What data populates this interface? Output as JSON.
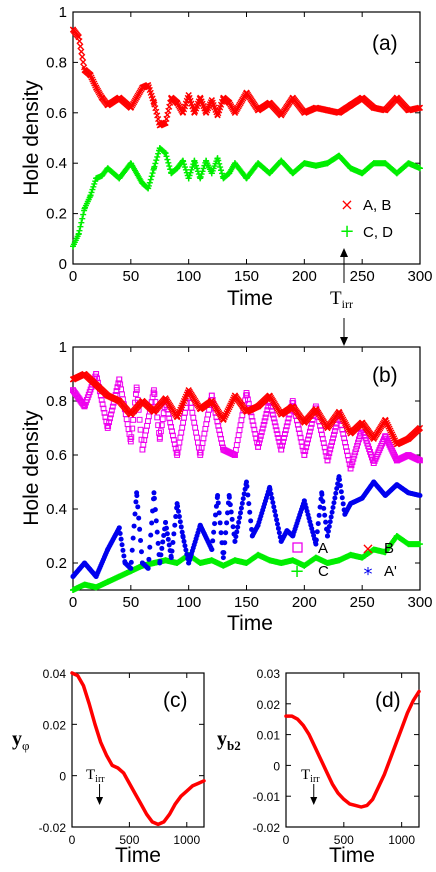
{
  "annotation": {
    "label": "T",
    "sub": "irr"
  },
  "chart_data": [
    {
      "type": "scatter",
      "panel_label": "(a)",
      "xlabel": "Time",
      "ylabel": "Hole density",
      "xlim": [
        0,
        300
      ],
      "ylim": [
        0,
        1
      ],
      "xticks": [
        "0",
        "50",
        "100",
        "150",
        "200",
        "250",
        "300"
      ],
      "yticks": [
        "0",
        "0.2",
        "0.4",
        "0.6",
        "0.8",
        "1"
      ],
      "xtick_values": [
        0,
        50,
        100,
        150,
        200,
        250,
        300
      ],
      "ytick_values": [
        0,
        0.2,
        0.4,
        0.6,
        0.8,
        1
      ],
      "legend_position": "bottom-right",
      "series": [
        {
          "name": "A, B",
          "color": "#ff0000",
          "marker": "x",
          "x": [
            0,
            5,
            10,
            15,
            20,
            25,
            30,
            40,
            50,
            60,
            65,
            70,
            75,
            80,
            85,
            90,
            95,
            100,
            105,
            110,
            115,
            120,
            125,
            130,
            135,
            140,
            150,
            160,
            170,
            180,
            190,
            200,
            210,
            220,
            230,
            240,
            250,
            260,
            270,
            280,
            290,
            300
          ],
          "y": [
            0.93,
            0.9,
            0.77,
            0.75,
            0.7,
            0.66,
            0.63,
            0.66,
            0.62,
            0.7,
            0.71,
            0.64,
            0.55,
            0.56,
            0.66,
            0.64,
            0.6,
            0.67,
            0.6,
            0.66,
            0.6,
            0.65,
            0.59,
            0.66,
            0.64,
            0.6,
            0.68,
            0.61,
            0.64,
            0.59,
            0.66,
            0.6,
            0.62,
            0.61,
            0.6,
            0.63,
            0.66,
            0.62,
            0.61,
            0.66,
            0.61,
            0.62
          ]
        },
        {
          "name": "C, D",
          "color": "#00ee00",
          "marker": "+",
          "x": [
            0,
            5,
            10,
            15,
            20,
            25,
            30,
            40,
            50,
            60,
            65,
            70,
            75,
            80,
            85,
            90,
            95,
            100,
            105,
            110,
            115,
            120,
            125,
            130,
            135,
            140,
            150,
            160,
            170,
            180,
            190,
            200,
            210,
            220,
            230,
            240,
            250,
            260,
            270,
            280,
            290,
            300
          ],
          "y": [
            0.07,
            0.12,
            0.22,
            0.27,
            0.34,
            0.35,
            0.38,
            0.34,
            0.4,
            0.32,
            0.3,
            0.38,
            0.46,
            0.44,
            0.36,
            0.38,
            0.41,
            0.34,
            0.41,
            0.34,
            0.41,
            0.36,
            0.42,
            0.34,
            0.36,
            0.4,
            0.34,
            0.4,
            0.36,
            0.41,
            0.36,
            0.4,
            0.39,
            0.4,
            0.43,
            0.38,
            0.36,
            0.4,
            0.4,
            0.36,
            0.4,
            0.38
          ]
        }
      ]
    },
    {
      "type": "scatter",
      "panel_label": "(b)",
      "xlabel": "Time",
      "ylabel": "Hole density",
      "xlim": [
        0,
        300
      ],
      "ylim": [
        0.1,
        1
      ],
      "xticks": [
        "0",
        "50",
        "100",
        "150",
        "200",
        "250",
        "300"
      ],
      "yticks": [
        "0.2",
        "0.4",
        "0.6",
        "0.8",
        "1"
      ],
      "xtick_values": [
        0,
        50,
        100,
        150,
        200,
        250,
        300
      ],
      "ytick_values": [
        0.2,
        0.4,
        0.6,
        0.8,
        1
      ],
      "legend_position": "bottom-right",
      "series": [
        {
          "name": "A",
          "color": "#ee00ee",
          "marker": "square",
          "x": [
            0,
            10,
            20,
            30,
            40,
            50,
            55,
            60,
            70,
            75,
            80,
            90,
            100,
            110,
            120,
            130,
            140,
            150,
            160,
            170,
            180,
            190,
            200,
            210,
            220,
            230,
            240,
            250,
            260,
            270,
            280,
            290,
            300
          ],
          "y": [
            0.84,
            0.78,
            0.9,
            0.7,
            0.88,
            0.65,
            0.85,
            0.62,
            0.84,
            0.66,
            0.8,
            0.6,
            0.83,
            0.6,
            0.82,
            0.62,
            0.6,
            0.83,
            0.63,
            0.8,
            0.62,
            0.8,
            0.6,
            0.78,
            0.58,
            0.75,
            0.55,
            0.7,
            0.57,
            0.67,
            0.58,
            0.6,
            0.58
          ]
        },
        {
          "name": "B",
          "color": "#ff0000",
          "marker": "x",
          "x": [
            0,
            10,
            20,
            30,
            40,
            50,
            60,
            70,
            80,
            90,
            100,
            110,
            120,
            130,
            140,
            150,
            160,
            170,
            180,
            190,
            200,
            210,
            220,
            230,
            240,
            250,
            260,
            270,
            280,
            290,
            300
          ],
          "y": [
            0.88,
            0.9,
            0.86,
            0.82,
            0.8,
            0.75,
            0.8,
            0.76,
            0.81,
            0.74,
            0.84,
            0.77,
            0.8,
            0.73,
            0.82,
            0.76,
            0.78,
            0.82,
            0.75,
            0.78,
            0.72,
            0.77,
            0.7,
            0.76,
            0.68,
            0.72,
            0.66,
            0.73,
            0.64,
            0.66,
            0.7
          ]
        },
        {
          "name": "C",
          "color": "#00ee00",
          "marker": "+",
          "x": [
            0,
            10,
            20,
            30,
            40,
            50,
            60,
            70,
            80,
            90,
            100,
            110,
            120,
            130,
            140,
            150,
            160,
            170,
            180,
            190,
            200,
            210,
            220,
            230,
            240,
            250,
            260,
            270,
            280,
            290,
            300
          ],
          "y": [
            0.1,
            0.12,
            0.11,
            0.13,
            0.15,
            0.17,
            0.19,
            0.2,
            0.21,
            0.2,
            0.23,
            0.2,
            0.21,
            0.19,
            0.21,
            0.2,
            0.23,
            0.21,
            0.2,
            0.21,
            0.19,
            0.22,
            0.2,
            0.21,
            0.23,
            0.22,
            0.25,
            0.24,
            0.3,
            0.27,
            0.27
          ]
        },
        {
          "name": "A'",
          "color": "#0000ee",
          "marker": "*",
          "x": [
            0,
            10,
            20,
            30,
            40,
            45,
            50,
            55,
            60,
            65,
            70,
            75,
            80,
            85,
            90,
            95,
            100,
            110,
            120,
            125,
            130,
            135,
            140,
            150,
            155,
            160,
            170,
            180,
            185,
            190,
            200,
            210,
            215,
            220,
            230,
            235,
            240,
            250,
            260,
            270,
            280,
            290,
            300
          ],
          "y": [
            0.15,
            0.2,
            0.15,
            0.25,
            0.33,
            0.2,
            0.18,
            0.46,
            0.2,
            0.18,
            0.46,
            0.2,
            0.35,
            0.22,
            0.42,
            0.3,
            0.2,
            0.34,
            0.25,
            0.45,
            0.22,
            0.45,
            0.28,
            0.5,
            0.3,
            0.34,
            0.48,
            0.28,
            0.32,
            0.3,
            0.43,
            0.27,
            0.46,
            0.3,
            0.52,
            0.38,
            0.42,
            0.44,
            0.5,
            0.45,
            0.49,
            0.46,
            0.45
          ]
        }
      ]
    },
    {
      "type": "line",
      "panel_label": "(c)",
      "xlabel": "Time",
      "ylabel": "y",
      "ylabel_sub": "φ",
      "xlim": [
        0,
        1150
      ],
      "ylim": [
        -0.02,
        0.04
      ],
      "xticks": [
        "0",
        "500",
        "1000"
      ],
      "yticks": [
        "0.04",
        "0.02",
        "0",
        "-0.02"
      ],
      "xtick_values": [
        0,
        500,
        1000
      ],
      "ytick_values": [
        0.04,
        0.02,
        0,
        -0.02
      ],
      "arrow_x": 240,
      "series": [
        {
          "color": "#ff0000",
          "x": [
            0,
            50,
            100,
            150,
            200,
            250,
            300,
            350,
            400,
            450,
            500,
            550,
            600,
            650,
            700,
            750,
            800,
            850,
            900,
            950,
            1000,
            1050,
            1100,
            1150
          ],
          "y": [
            0.04,
            0.039,
            0.035,
            0.028,
            0.02,
            0.013,
            0.008,
            0.004,
            0.003,
            0.001,
            -0.003,
            -0.007,
            -0.011,
            -0.015,
            -0.018,
            -0.019,
            -0.018,
            -0.015,
            -0.011,
            -0.008,
            -0.006,
            -0.004,
            -0.003,
            -0.002
          ]
        }
      ]
    },
    {
      "type": "line",
      "panel_label": "(d)",
      "xlabel": "Time",
      "ylabel": "y",
      "ylabel_sub": "b2",
      "xlim": [
        0,
        1150
      ],
      "ylim": [
        -0.02,
        0.03
      ],
      "xticks": [
        "0",
        "500",
        "1000"
      ],
      "yticks": [
        "0.03",
        "0.02",
        "0.01",
        "0",
        "-0.01",
        "-0.02"
      ],
      "xtick_values": [
        0,
        500,
        1000
      ],
      "ytick_values": [
        0.03,
        0.02,
        0.01,
        0,
        -0.01,
        -0.02
      ],
      "arrow_x": 240,
      "series": [
        {
          "color": "#ff0000",
          "x": [
            0,
            50,
            100,
            150,
            200,
            250,
            300,
            350,
            400,
            450,
            500,
            550,
            600,
            650,
            700,
            750,
            800,
            850,
            900,
            950,
            1000,
            1050,
            1100,
            1150
          ],
          "y": [
            0.016,
            0.016,
            0.015,
            0.013,
            0.01,
            0.006,
            0.002,
            -0.002,
            -0.006,
            -0.009,
            -0.011,
            -0.0125,
            -0.013,
            -0.0135,
            -0.013,
            -0.011,
            -0.007,
            -0.003,
            0.002,
            0.007,
            0.012,
            0.017,
            0.021,
            0.024
          ]
        }
      ]
    }
  ]
}
